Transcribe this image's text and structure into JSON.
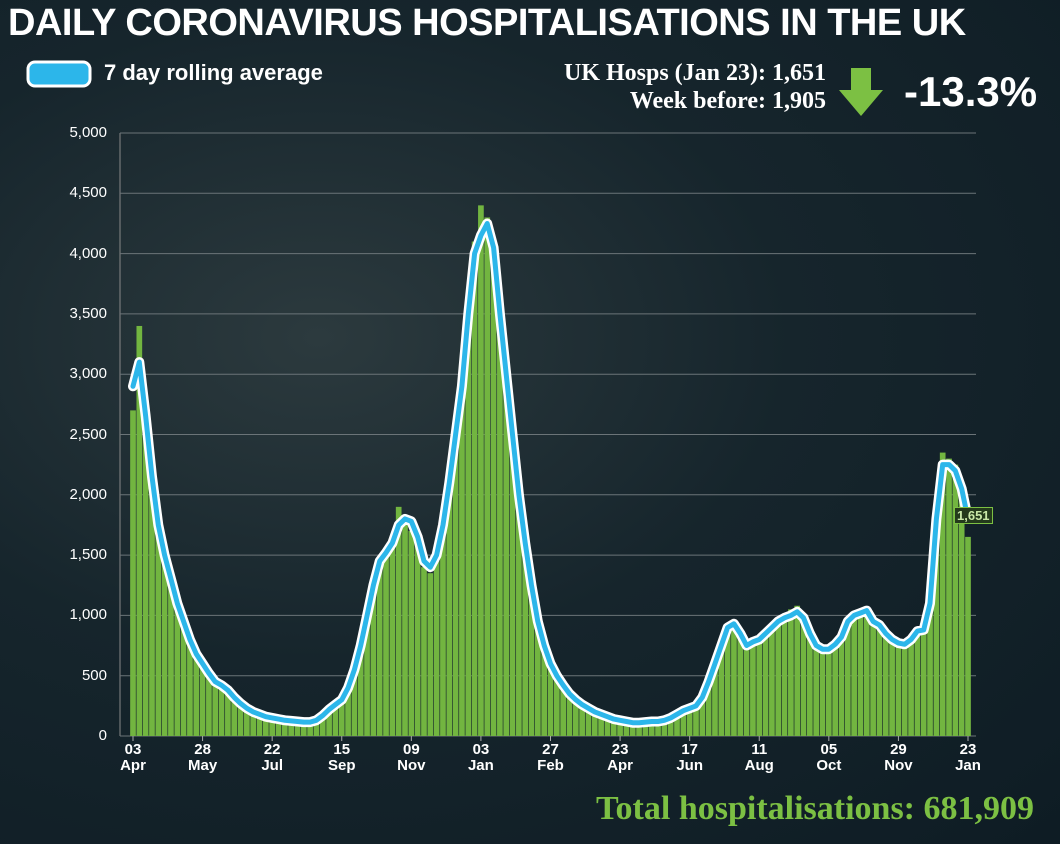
{
  "chart_data": {
    "type": "bar",
    "title": "DAILY CORONAVIRUS HOSPITALISATIONS IN THE UK",
    "annotations": {
      "latest": "UK Hosps (Jan 23): 1,651",
      "previous": "Week before: 1,905",
      "change": "-13.3%",
      "total": "Total hospitalisations: 681,909",
      "end_label": "1,651"
    },
    "categories": [
      "03\nApr",
      null,
      null,
      null,
      null,
      null,
      null,
      null,
      null,
      null,
      null,
      "28\nMay",
      null,
      null,
      null,
      null,
      null,
      null,
      null,
      null,
      null,
      null,
      "22\nJul",
      null,
      null,
      null,
      null,
      null,
      null,
      null,
      null,
      null,
      null,
      "15\nSep",
      null,
      null,
      null,
      null,
      null,
      null,
      null,
      null,
      null,
      null,
      "09\nNov",
      null,
      null,
      null,
      null,
      null,
      null,
      null,
      null,
      null,
      null,
      "03\nJan",
      null,
      null,
      null,
      null,
      null,
      null,
      null,
      null,
      null,
      null,
      "27\nFeb",
      null,
      null,
      null,
      null,
      null,
      null,
      null,
      null,
      null,
      null,
      "23\nApr",
      null,
      null,
      null,
      null,
      null,
      null,
      null,
      null,
      null,
      null,
      "17\nJun",
      null,
      null,
      null,
      null,
      null,
      null,
      null,
      null,
      null,
      null,
      "11\nAug",
      null,
      null,
      null,
      null,
      null,
      null,
      null,
      null,
      null,
      null,
      "05\nOct",
      null,
      null,
      null,
      null,
      null,
      null,
      null,
      null,
      null,
      null,
      "29\nNov",
      null,
      null,
      null,
      null,
      null,
      null,
      null,
      null,
      null,
      null,
      "23\nJan"
    ],
    "series": [
      {
        "type": "bar",
        "color": "#72b540",
        "values": [
          2700,
          3400,
          2500,
          2050,
          1700,
          1450,
          1250,
          1050,
          900,
          780,
          650,
          580,
          500,
          440,
          400,
          360,
          300,
          260,
          220,
          190,
          170,
          150,
          140,
          135,
          125,
          120,
          115,
          110,
          110,
          125,
          165,
          215,
          250,
          290,
          380,
          530,
          720,
          980,
          1230,
          1480,
          1550,
          1650,
          1900,
          1750,
          1700,
          1600,
          1400,
          1350,
          1480,
          1700,
          2050,
          2450,
          2850,
          3450,
          4100,
          4400,
          4300,
          3900,
          3400,
          2900,
          2450,
          1950,
          1550,
          1200,
          920,
          730,
          580,
          480,
          400,
          340,
          290,
          250,
          220,
          190,
          170,
          150,
          135,
          125,
          115,
          105,
          105,
          110,
          115,
          118,
          125,
          145,
          175,
          205,
          225,
          240,
          310,
          440,
          590,
          740,
          890,
          900,
          820,
          740,
          770,
          790,
          840,
          890,
          940,
          1000,
          1050,
          1080,
          950,
          820,
          740,
          710,
          710,
          750,
          810,
          950,
          1020,
          1050,
          1060,
          930,
          900,
          840,
          790,
          760,
          750,
          790,
          860,
          870,
          1150,
          1900,
          2350,
          2300,
          2250,
          2000,
          1651
        ]
      },
      {
        "type": "line",
        "name": "7 day rolling average",
        "color": "#2cb6ea",
        "values": [
          2900,
          3100,
          2650,
          2150,
          1750,
          1500,
          1300,
          1100,
          950,
          800,
          680,
          600,
          520,
          450,
          420,
          380,
          320,
          270,
          230,
          200,
          180,
          160,
          150,
          140,
          130,
          125,
          120,
          115,
          115,
          130,
          170,
          220,
          260,
          300,
          400,
          550,
          750,
          1000,
          1250,
          1450,
          1520,
          1600,
          1750,
          1800,
          1780,
          1650,
          1450,
          1400,
          1500,
          1750,
          2100,
          2500,
          2900,
          3500,
          4000,
          4150,
          4250,
          4050,
          3500,
          3000,
          2500,
          2000,
          1600,
          1250,
          950,
          750,
          600,
          500,
          420,
          350,
          300,
          260,
          230,
          200,
          180,
          160,
          140,
          130,
          120,
          110,
          110,
          115,
          120,
          120,
          130,
          150,
          180,
          210,
          230,
          250,
          320,
          450,
          600,
          750,
          900,
          930,
          850,
          750,
          780,
          800,
          850,
          900,
          950,
          980,
          1000,
          1030,
          980,
          850,
          750,
          720,
          720,
          760,
          820,
          950,
          1000,
          1020,
          1040,
          950,
          920,
          850,
          800,
          770,
          760,
          800,
          870,
          880,
          1100,
          1800,
          2250,
          2250,
          2200,
          2050,
          1800
        ]
      }
    ],
    "ylim": [
      0,
      5000
    ],
    "yticks": [
      0,
      500,
      {
        "value": 1000,
        "label": "1,000"
      },
      {
        "value": 1500,
        "label": "1,500"
      },
      {
        "value": 2000,
        "label": "2,000"
      },
      {
        "value": 2500,
        "label": "2,500"
      },
      {
        "value": 3000,
        "label": "3,000"
      },
      {
        "value": 3500,
        "label": "3,500"
      },
      {
        "value": 4000,
        "label": "4,000"
      },
      {
        "value": 4500,
        "label": "4,500"
      },
      {
        "value": 5000,
        "label": "5,000"
      }
    ],
    "grid": true
  }
}
